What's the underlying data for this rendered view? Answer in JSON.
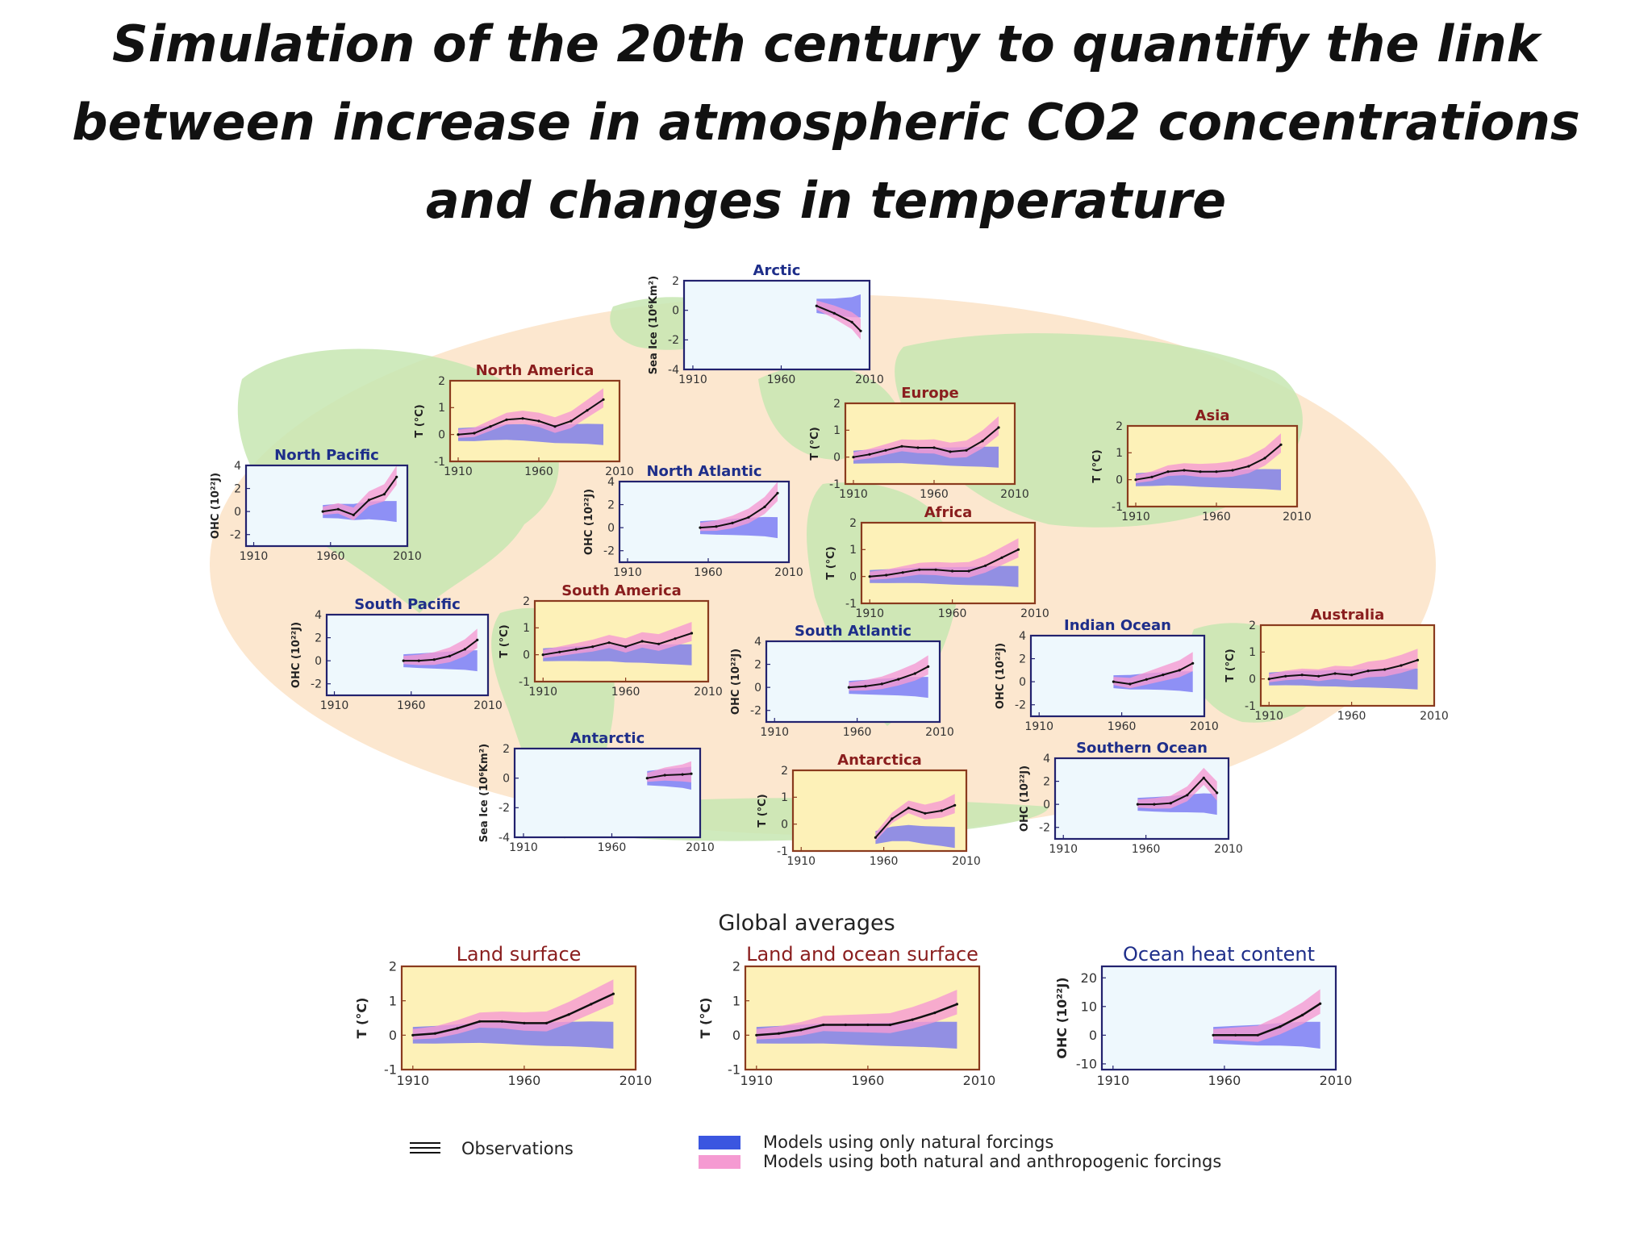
{
  "slide": {
    "title_lines": [
      "Simulation of the 20th century to quantify the link",
      "between increase in atmospheric CO2 concentrations",
      "and changes in temperature"
    ]
  },
  "colors": {
    "land_panel_bg": "#fdf1b8",
    "ocean_panel_bg": "#eef8fd",
    "land_frame": "#8a3b1e",
    "ocean_frame": "#22226e",
    "natural_band": "#6e6ef2",
    "anthropogenic_band": "#f59ad2",
    "observations": "#111111",
    "map_land": "#c7e6b2",
    "map_ocean": "#fce7cf",
    "title_land": "#8a1e1e",
    "title_ocean": "#1e2e8a"
  },
  "global_title": "Global averages",
  "legend": {
    "observations": "Observations",
    "natural": "Models using only natural forcings",
    "both": "Models using both natural and anthropogenic forcings"
  },
  "chart_data": [
    {
      "id": "arctic",
      "type": "area",
      "title": "Arctic",
      "ylabel": "Sea Ice (10⁶Km²)",
      "kind": "ocean",
      "x": [
        1980,
        1990,
        2000,
        2005
      ],
      "values": [
        0.3,
        -0.2,
        -0.8,
        -1.4
      ],
      "ylim": [
        -4,
        2
      ],
      "xticks": [
        "1910",
        "1960",
        "2010"
      ],
      "yticks": [
        "2",
        "0",
        "-2",
        "-4"
      ]
    },
    {
      "id": "north_america",
      "type": "area",
      "title": "North America",
      "ylabel": "T (°C)",
      "kind": "land",
      "x": [
        1910,
        1920,
        1930,
        1940,
        1950,
        1960,
        1970,
        1980,
        1990,
        2000
      ],
      "values": [
        0.0,
        0.05,
        0.3,
        0.55,
        0.6,
        0.5,
        0.3,
        0.5,
        0.9,
        1.3
      ],
      "ylim": [
        -1,
        2
      ],
      "xticks": [
        "1910",
        "1960",
        "2010"
      ],
      "yticks": [
        "2",
        "1",
        "0",
        "-1"
      ]
    },
    {
      "id": "europe",
      "type": "area",
      "title": "Europe",
      "ylabel": "T (°C)",
      "kind": "land",
      "x": [
        1910,
        1920,
        1930,
        1940,
        1950,
        1960,
        1970,
        1980,
        1990,
        2000
      ],
      "values": [
        0.0,
        0.1,
        0.25,
        0.4,
        0.35,
        0.35,
        0.2,
        0.25,
        0.6,
        1.1
      ],
      "ylim": [
        -1,
        2
      ],
      "xticks": [
        "1910",
        "1960",
        "2010"
      ],
      "yticks": [
        "2",
        "1",
        "0",
        "-1"
      ]
    },
    {
      "id": "asia",
      "type": "area",
      "title": "Asia",
      "ylabel": "T (°C)",
      "kind": "land",
      "x": [
        1910,
        1920,
        1930,
        1940,
        1950,
        1960,
        1970,
        1980,
        1990,
        2000
      ],
      "values": [
        0.0,
        0.1,
        0.3,
        0.35,
        0.3,
        0.3,
        0.35,
        0.5,
        0.8,
        1.3
      ],
      "ylim": [
        -1,
        2
      ],
      "xticks": [
        "1910",
        "1960",
        "2010"
      ],
      "yticks": [
        "2",
        "1",
        "0",
        "-1"
      ]
    },
    {
      "id": "north_pacific",
      "type": "area",
      "title": "North Pacific",
      "ylabel": "OHC (10²²J)",
      "kind": "ocean",
      "x": [
        1955,
        1965,
        1975,
        1985,
        1995,
        2003
      ],
      "values": [
        0.0,
        0.2,
        -0.3,
        1.0,
        1.5,
        3.0
      ],
      "ylim": [
        -3,
        4
      ],
      "xticks": [
        "1910",
        "1960",
        "2010"
      ],
      "yticks": [
        "4",
        "2",
        "0",
        "-2"
      ]
    },
    {
      "id": "north_atlantic",
      "type": "area",
      "title": "North Atlantic",
      "ylabel": "OHC (10²²J)",
      "kind": "ocean",
      "x": [
        1955,
        1965,
        1975,
        1985,
        1995,
        2003
      ],
      "values": [
        0.0,
        0.1,
        0.4,
        0.9,
        1.8,
        3.0
      ],
      "ylim": [
        -3,
        4
      ],
      "xticks": [
        "1910",
        "1960",
        "2010"
      ],
      "yticks": [
        "4",
        "2",
        "0",
        "-2"
      ]
    },
    {
      "id": "africa",
      "type": "area",
      "title": "Africa",
      "ylabel": "T (°C)",
      "kind": "land",
      "x": [
        1910,
        1920,
        1930,
        1940,
        1950,
        1960,
        1970,
        1980,
        1990,
        2000
      ],
      "values": [
        0.0,
        0.05,
        0.15,
        0.25,
        0.25,
        0.2,
        0.2,
        0.4,
        0.7,
        1.0
      ],
      "ylim": [
        -1,
        2
      ],
      "xticks": [
        "1910",
        "1960",
        "2010"
      ],
      "yticks": [
        "2",
        "1",
        "0",
        "-1"
      ]
    },
    {
      "id": "south_pacific",
      "type": "area",
      "title": "South Pacific",
      "ylabel": "OHC (10²²J)",
      "kind": "ocean",
      "x": [
        1955,
        1965,
        1975,
        1985,
        1995,
        2003
      ],
      "values": [
        0.0,
        0.0,
        0.1,
        0.4,
        1.0,
        1.8
      ],
      "ylim": [
        -3,
        4
      ],
      "xticks": [
        "1910",
        "1960",
        "2010"
      ],
      "yticks": [
        "4",
        "2",
        "0",
        "-2"
      ]
    },
    {
      "id": "south_america",
      "type": "area",
      "title": "South America",
      "ylabel": "T (°C)",
      "kind": "land",
      "x": [
        1910,
        1920,
        1930,
        1940,
        1950,
        1960,
        1970,
        1980,
        1990,
        2000
      ],
      "values": [
        0.0,
        0.1,
        0.2,
        0.3,
        0.45,
        0.3,
        0.5,
        0.4,
        0.6,
        0.8
      ],
      "ylim": [
        -1,
        2
      ],
      "xticks": [
        "1910",
        "1960",
        "2010"
      ],
      "yticks": [
        "2",
        "1",
        "0",
        "-1"
      ]
    },
    {
      "id": "south_atlantic",
      "type": "area",
      "title": "South Atlantic",
      "ylabel": "OHC (10²²J)",
      "kind": "ocean",
      "x": [
        1955,
        1965,
        1975,
        1985,
        1995,
        2003
      ],
      "values": [
        0.0,
        0.1,
        0.3,
        0.7,
        1.2,
        1.8
      ],
      "ylim": [
        -3,
        4
      ],
      "xticks": [
        "1910",
        "1960",
        "2010"
      ],
      "yticks": [
        "4",
        "2",
        "0",
        "-2"
      ]
    },
    {
      "id": "indian_ocean",
      "type": "area",
      "title": "Indian Ocean",
      "ylabel": "OHC (10²²J)",
      "kind": "ocean",
      "x": [
        1955,
        1965,
        1975,
        1985,
        1995,
        2003
      ],
      "values": [
        0.0,
        -0.2,
        0.2,
        0.6,
        1.0,
        1.6
      ],
      "ylim": [
        -3,
        4
      ],
      "xticks": [
        "1910",
        "1960",
        "2010"
      ],
      "yticks": [
        "4",
        "2",
        "0",
        "-2"
      ]
    },
    {
      "id": "australia",
      "type": "area",
      "title": "Australia",
      "ylabel": "T (°C)",
      "kind": "land",
      "x": [
        1910,
        1920,
        1930,
        1940,
        1950,
        1960,
        1970,
        1980,
        1990,
        2000
      ],
      "values": [
        0.0,
        0.1,
        0.15,
        0.1,
        0.2,
        0.15,
        0.3,
        0.35,
        0.5,
        0.7
      ],
      "ylim": [
        -1,
        2
      ],
      "xticks": [
        "1910",
        "1960",
        "2010"
      ],
      "yticks": [
        "2",
        "1",
        "0",
        "-1"
      ]
    },
    {
      "id": "antarctic",
      "type": "area",
      "title": "Antarctic",
      "ylabel": "Sea Ice (10⁶Km²)",
      "kind": "ocean",
      "x": [
        1980,
        1990,
        2000,
        2005
      ],
      "values": [
        0.0,
        0.2,
        0.25,
        0.3
      ],
      "ylim": [
        -4,
        2
      ],
      "xticks": [
        "1910",
        "1960",
        "2010"
      ],
      "yticks": [
        "2",
        "0",
        "-2",
        "-4"
      ]
    },
    {
      "id": "antarctica",
      "type": "area",
      "title": "Antarctica",
      "ylabel": "T (°C)",
      "kind": "land",
      "x": [
        1955,
        1965,
        1975,
        1985,
        1995,
        2003
      ],
      "values": [
        -0.5,
        0.2,
        0.6,
        0.4,
        0.5,
        0.7
      ],
      "ylim": [
        -1,
        2
      ],
      "xticks": [
        "1910",
        "1960",
        "2010"
      ],
      "yticks": [
        "2",
        "1",
        "0",
        "-1"
      ]
    },
    {
      "id": "southern_ocean",
      "type": "area",
      "title": "Southern Ocean",
      "ylabel": "OHC (10²²J)",
      "kind": "ocean",
      "x": [
        1955,
        1965,
        1975,
        1985,
        1995,
        2003
      ],
      "values": [
        0.0,
        0.0,
        0.1,
        0.8,
        2.3,
        1.0
      ],
      "ylim": [
        -3,
        4
      ],
      "xticks": [
        "1910",
        "1960",
        "2010"
      ],
      "yticks": [
        "4",
        "2",
        "0",
        "-2"
      ]
    },
    {
      "id": "land_surface",
      "type": "area",
      "title": "Land surface",
      "ylabel": "T (°C)",
      "kind": "land",
      "x": [
        1910,
        1920,
        1930,
        1940,
        1950,
        1960,
        1970,
        1980,
        1990,
        2000
      ],
      "values": [
        0.0,
        0.05,
        0.2,
        0.4,
        0.4,
        0.35,
        0.35,
        0.6,
        0.9,
        1.2
      ],
      "ylim": [
        -1,
        2
      ],
      "xticks": [
        "1910",
        "1960",
        "2010"
      ],
      "yticks": [
        "2",
        "1",
        "0",
        "-1"
      ]
    },
    {
      "id": "land_ocean_surface",
      "type": "area",
      "title": "Land and ocean surface",
      "ylabel": "T (°C)",
      "kind": "land",
      "x": [
        1910,
        1920,
        1930,
        1940,
        1950,
        1960,
        1970,
        1980,
        1990,
        2000
      ],
      "values": [
        0.0,
        0.05,
        0.15,
        0.3,
        0.3,
        0.3,
        0.3,
        0.45,
        0.65,
        0.9
      ],
      "ylim": [
        -1,
        2
      ],
      "xticks": [
        "1910",
        "1960",
        "2010"
      ],
      "yticks": [
        "2",
        "1",
        "0",
        "-1"
      ]
    },
    {
      "id": "ocean_heat_content",
      "type": "area",
      "title": "Ocean heat content",
      "ylabel": "OHC (10²²J)",
      "kind": "ocean",
      "x": [
        1955,
        1965,
        1975,
        1985,
        1995,
        2003
      ],
      "values": [
        0.0,
        0.0,
        0.0,
        3.0,
        7.0,
        11.0
      ],
      "ylim": [
        -12,
        24
      ],
      "xticks": [
        "1910",
        "1960",
        "2010"
      ],
      "yticks": [
        "20",
        "10",
        "0",
        "-10"
      ]
    }
  ]
}
